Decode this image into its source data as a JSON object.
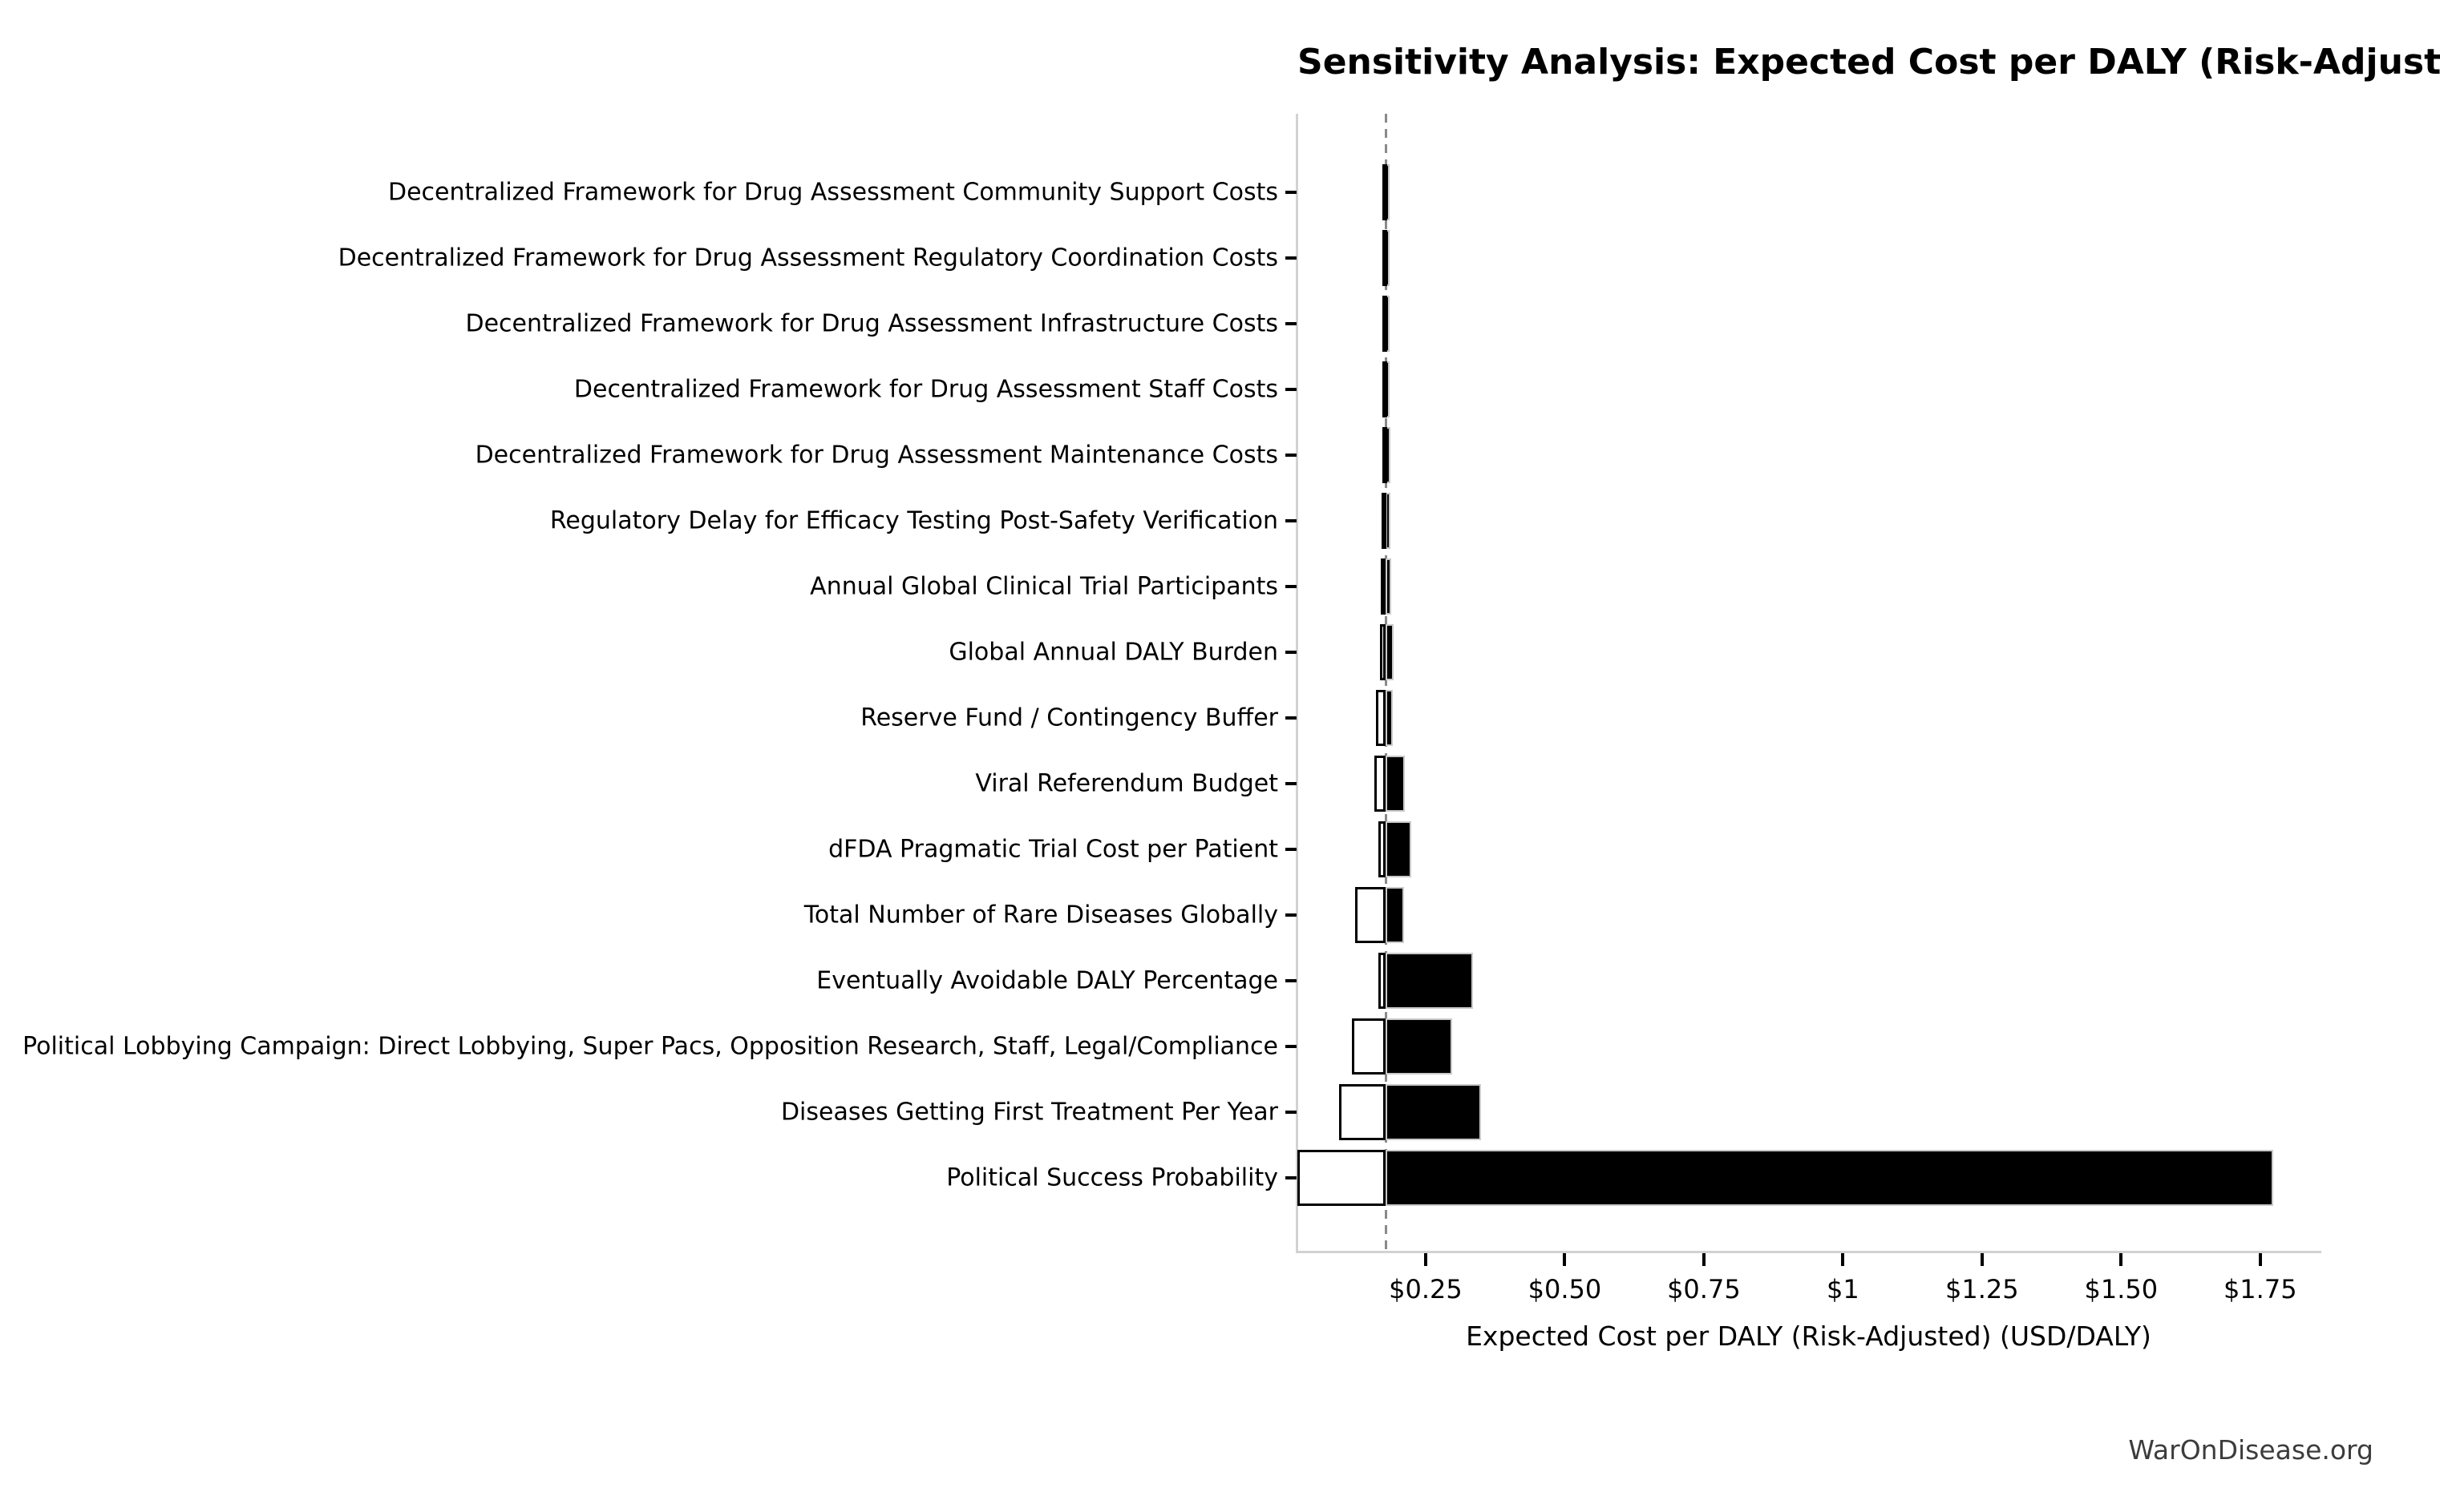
{
  "chart_data": {
    "type": "bar",
    "variant": "tornado-sensitivity",
    "orientation": "horizontal",
    "title": "Sensitivity Analysis: Expected Cost per DALY (Risk-Adjusted)",
    "xlabel": "Expected Cost per DALY (Risk-Adjusted) (USD/DALY)",
    "footer": "WarOnDisease.org",
    "currency_unit": "USD/DALY",
    "baseline": 0.178,
    "xlim": [
      0.0195,
      1.857
    ],
    "grid": false,
    "legend": false,
    "x_ticks": [
      {
        "value": 0.25,
        "label": "$0.25"
      },
      {
        "value": 0.5,
        "label": "$0.50"
      },
      {
        "value": 0.75,
        "label": "$0.75"
      },
      {
        "value": 1.0,
        "label": "$1"
      },
      {
        "value": 1.25,
        "label": "$1.25"
      },
      {
        "value": 1.5,
        "label": "$1.50"
      },
      {
        "value": 1.75,
        "label": "$1.75"
      }
    ],
    "bars": [
      {
        "label": "Decentralized Framework for Drug Assessment Community Support Costs",
        "low": 0.172,
        "high": 0.185
      },
      {
        "label": "Decentralized Framework for Drug Assessment Regulatory Coordination Costs",
        "low": 0.172,
        "high": 0.185
      },
      {
        "label": "Decentralized Framework for Drug Assessment Infrastructure Costs",
        "low": 0.172,
        "high": 0.185
      },
      {
        "label": "Decentralized Framework for Drug Assessment Staff Costs",
        "low": 0.172,
        "high": 0.185
      },
      {
        "label": "Decentralized Framework for Drug Assessment Maintenance Costs",
        "low": 0.172,
        "high": 0.186
      },
      {
        "label": "Regulatory Delay for Efficacy Testing Post-Safety Verification",
        "low": 0.171,
        "high": 0.187
      },
      {
        "label": "Annual Global Clinical Trial Participants",
        "low": 0.17,
        "high": 0.188
      },
      {
        "label": "Global Annual DALY Burden",
        "low": 0.168,
        "high": 0.192
      },
      {
        "label": "Reserve Fund / Contingency Buffer",
        "low": 0.161,
        "high": 0.191
      },
      {
        "label": "Viral Referendum Budget",
        "low": 0.158,
        "high": 0.213
      },
      {
        "label": "dFDA Pragmatic Trial Cost per Patient",
        "low": 0.165,
        "high": 0.224
      },
      {
        "label": "Total Number of Rare Diseases Globally",
        "low": 0.123,
        "high": 0.211
      },
      {
        "label": "Eventually Avoidable DALY Percentage",
        "low": 0.165,
        "high": 0.335
      },
      {
        "label": "Political Lobbying Campaign: Direct Lobbying, Super Pacs, Opposition Research, Staff, Legal/Compliance",
        "low": 0.117,
        "high": 0.298
      },
      {
        "label": "Diseases Getting First Treatment Per Year",
        "low": 0.094,
        "high": 0.35
      },
      {
        "label": "Political Success Probability",
        "low": 0.0195,
        "high": 1.773
      }
    ],
    "colors": {
      "bar_high_fill": "#000000",
      "bar_high_edge": "#c9c9c9",
      "bar_low_fill": "#ffffff",
      "bar_low_edge": "#000000",
      "baseline_line": "#8a8a8a",
      "spine": "#d2d2d2",
      "text": "#000000",
      "footer_text": "#3c3c3c"
    }
  }
}
